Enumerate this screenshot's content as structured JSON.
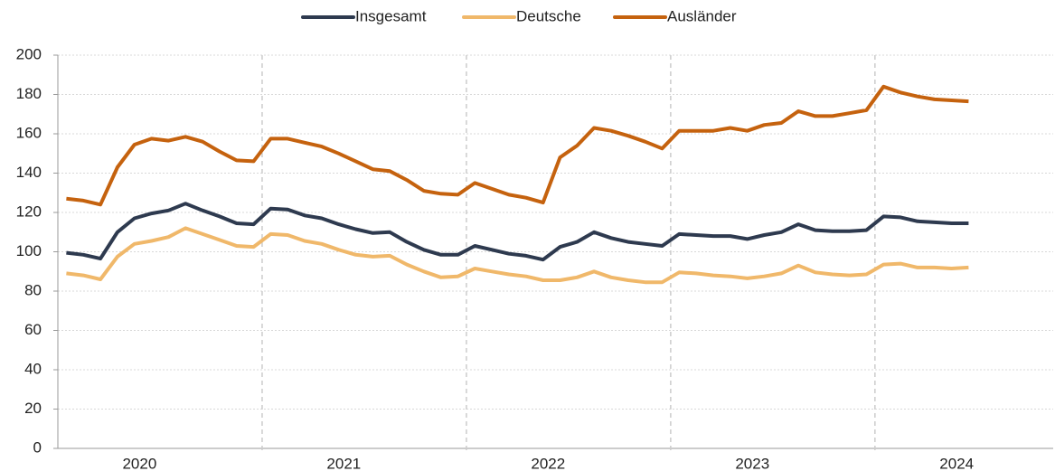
{
  "chart_data": {
    "type": "line",
    "categories": [
      "2020",
      null,
      null,
      null,
      null,
      null,
      null,
      null,
      null,
      null,
      null,
      null,
      "2021",
      null,
      null,
      null,
      null,
      null,
      null,
      null,
      null,
      null,
      null,
      null,
      "2022",
      null,
      null,
      null,
      null,
      null,
      null,
      null,
      null,
      null,
      null,
      null,
      "2023",
      null,
      null,
      null,
      null,
      null,
      null,
      null,
      null,
      null,
      null,
      null,
      "2024",
      null,
      null,
      null,
      null,
      null
    ],
    "series": [
      {
        "name": "Insgesamt",
        "color": "#2e3a4f",
        "values": [
          99.5,
          98.5,
          96.5,
          110,
          117,
          119.5,
          121,
          124.5,
          121,
          118,
          114.5,
          114,
          122,
          121.5,
          118.5,
          117,
          114,
          111.5,
          109.5,
          110,
          105,
          101,
          98.5,
          98.5,
          103,
          101,
          99,
          98,
          96,
          102.5,
          105,
          110,
          107,
          105,
          104,
          103,
          109,
          108.5,
          108,
          108,
          106.5,
          108.5,
          110,
          114,
          111,
          110.5,
          110.5,
          111,
          118,
          117.5,
          115.5,
          115,
          114.5,
          114.5
        ]
      },
      {
        "name": "Deutsche",
        "color": "#f0b86a",
        "values": [
          89,
          88,
          86,
          97.5,
          104,
          105.5,
          107.5,
          112,
          109,
          106,
          103,
          102.5,
          109,
          108.5,
          105.5,
          104,
          101,
          98.5,
          97.5,
          98,
          93.5,
          90,
          87,
          87.5,
          91.5,
          90,
          88.5,
          87.5,
          85.5,
          85.5,
          87,
          90,
          87,
          85.5,
          84.5,
          84.5,
          89.5,
          89,
          88,
          87.5,
          86.5,
          87.5,
          89,
          93,
          89.5,
          88.5,
          88,
          88.5,
          93.5,
          94,
          92,
          92,
          91.5,
          92
        ]
      },
      {
        "name": "Ausländer",
        "color": "#c5620e",
        "values": [
          127,
          126,
          124,
          143,
          154.5,
          157.5,
          156.5,
          158.5,
          156,
          151,
          146.5,
          146,
          157.5,
          157.5,
          155.5,
          153.5,
          150,
          146,
          142,
          141,
          136.5,
          131,
          129.5,
          129,
          135,
          132,
          129,
          127.5,
          125,
          148,
          154,
          163,
          161.5,
          159,
          156,
          152.5,
          161.5,
          161.5,
          161.5,
          163,
          161.5,
          164.5,
          165.5,
          171.5,
          169,
          169,
          170.5,
          172,
          184,
          181,
          179,
          177.5,
          177,
          176.5
        ]
      }
    ],
    "ylim": [
      0,
      200
    ],
    "yticks": [
      0,
      20,
      40,
      60,
      80,
      100,
      120,
      140,
      160,
      180,
      200
    ],
    "grid": true,
    "legend": "top"
  }
}
